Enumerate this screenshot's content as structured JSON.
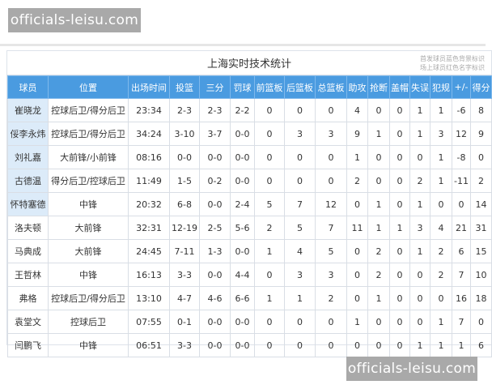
{
  "watermark": "officials-leisu.com",
  "table": {
    "title": "上海实时技术统计",
    "note_line1": "首发球员蓝色背景标识",
    "note_line2": "场上球员红色名字标识",
    "headers": [
      "球员",
      "位置",
      "出场时间",
      "投篮",
      "三分",
      "罚球",
      "前篮板",
      "后篮板",
      "总篮板",
      "助攻",
      "抢断",
      "盖帽",
      "失误",
      "犯规",
      "+/-",
      "得分"
    ],
    "rows": [
      {
        "starter": true,
        "cells": [
          "崔晓龙",
          "控球后卫/得分后卫",
          "23:34",
          "2-3",
          "2-3",
          "2-2",
          "0",
          "0",
          "0",
          "4",
          "0",
          "0",
          "1",
          "1",
          "-6",
          "8"
        ]
      },
      {
        "starter": true,
        "cells": [
          "俀李永炜",
          "控球后卫/得分后卫",
          "34:24",
          "3-10",
          "3-7",
          "0-0",
          "0",
          "3",
          "3",
          "9",
          "1",
          "0",
          "1",
          "3",
          "12",
          "9"
        ]
      },
      {
        "starter": true,
        "cells": [
          "刘礼嘉",
          "大前锋/小前锋",
          "08:16",
          "0-0",
          "0-0",
          "0-0",
          "0",
          "0",
          "0",
          "1",
          "0",
          "0",
          "0",
          "1",
          "-8",
          "0"
        ]
      },
      {
        "starter": true,
        "cells": [
          "古德温",
          "得分后卫/控球后卫",
          "11:49",
          "1-5",
          "0-2",
          "0-0",
          "0",
          "0",
          "0",
          "2",
          "0",
          "0",
          "2",
          "1",
          "-11",
          "2"
        ]
      },
      {
        "starter": true,
        "cells": [
          "怀特塞德",
          "中锋",
          "20:32",
          "6-8",
          "0-0",
          "2-4",
          "5",
          "7",
          "12",
          "0",
          "1",
          "0",
          "1",
          "0",
          "0",
          "14"
        ]
      },
      {
        "starter": false,
        "cells": [
          "洛夫顿",
          "大前锋",
          "32:31",
          "12-19",
          "2-5",
          "5-6",
          "2",
          "5",
          "7",
          "11",
          "1",
          "1",
          "3",
          "4",
          "21",
          "31"
        ]
      },
      {
        "starter": false,
        "cells": [
          "马典成",
          "大前锋",
          "24:45",
          "7-11",
          "1-3",
          "0-0",
          "1",
          "4",
          "5",
          "0",
          "2",
          "0",
          "1",
          "2",
          "6",
          "15"
        ]
      },
      {
        "starter": false,
        "cells": [
          "王哲林",
          "中锋",
          "16:13",
          "3-3",
          "0-0",
          "4-4",
          "0",
          "3",
          "3",
          "0",
          "2",
          "0",
          "0",
          "2",
          "7",
          "10"
        ]
      },
      {
        "starter": false,
        "cells": [
          "弗格",
          "控球后卫/得分后卫",
          "13:10",
          "4-7",
          "4-6",
          "6-6",
          "1",
          "1",
          "2",
          "0",
          "1",
          "0",
          "0",
          "0",
          "16",
          "18"
        ]
      },
      {
        "starter": false,
        "cells": [
          "袁堂文",
          "控球后卫",
          "07:55",
          "0-1",
          "0-0",
          "0-0",
          "0",
          "0",
          "0",
          "1",
          "0",
          "0",
          "0",
          "1",
          "7",
          "0"
        ]
      },
      {
        "starter": false,
        "cells": [
          "闫鹏飞",
          "中锋",
          "06:51",
          "3-3",
          "0-0",
          "0-0",
          "0",
          "0",
          "0",
          "0",
          "0",
          "0",
          "1",
          "1",
          "1",
          "6"
        ]
      }
    ]
  }
}
